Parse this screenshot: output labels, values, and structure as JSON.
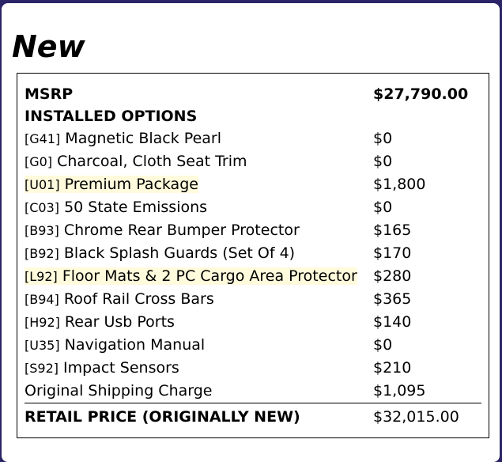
{
  "heading": "New",
  "msrp": {
    "label": "MSRP",
    "value": "$27,790.00"
  },
  "options_heading": "INSTALLED OPTIONS",
  "options": [
    {
      "code": "[G41]",
      "name": "Magnetic Black Pearl",
      "price": "$0",
      "highlight": false
    },
    {
      "code": "[G0]",
      "name": "Charcoal, Cloth Seat Trim",
      "price": "$0",
      "highlight": false
    },
    {
      "code": "[U01]",
      "name": "Premium Package",
      "price": "$1,800",
      "highlight": true
    },
    {
      "code": "[C03]",
      "name": "50 State Emissions",
      "price": "$0",
      "highlight": false
    },
    {
      "code": "[B93]",
      "name": "Chrome Rear Bumper Protector",
      "price": "$165",
      "highlight": false
    },
    {
      "code": "[B92]",
      "name": "Black Splash Guards (Set Of 4)",
      "price": "$170",
      "highlight": false
    },
    {
      "code": "[L92]",
      "name": "Floor Mats & 2 PC Cargo Area Protector",
      "price": "$280",
      "highlight": true
    },
    {
      "code": "[B94]",
      "name": "Roof Rail Cross Bars",
      "price": "$365",
      "highlight": false
    },
    {
      "code": "[H92]",
      "name": "Rear Usb Ports",
      "price": "$140",
      "highlight": false
    },
    {
      "code": "[U35]",
      "name": "Navigation Manual",
      "price": "$0",
      "highlight": false
    },
    {
      "code": "[S92]",
      "name": "Impact Sensors",
      "price": "$210",
      "highlight": false
    }
  ],
  "shipping": {
    "label": "Original Shipping Charge",
    "value": "$1,095"
  },
  "total": {
    "label": "RETAIL PRICE (ORIGINALLY NEW)",
    "value": "$32,015.00"
  },
  "colors": {
    "background": "#2b2466",
    "highlight": "#fffbdc"
  }
}
